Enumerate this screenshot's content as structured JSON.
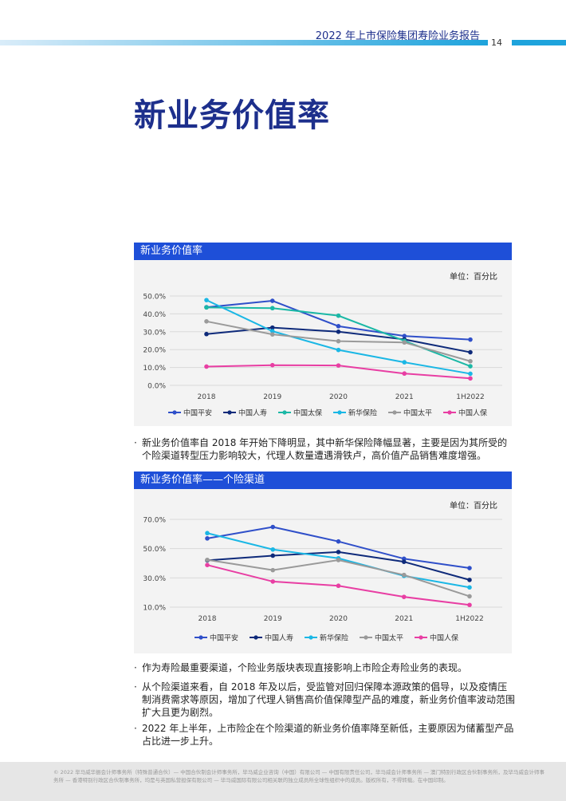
{
  "header": {
    "title": "2022 年上市保险集团寿险业务报告",
    "page": "14"
  },
  "page_title": "新业务价值率",
  "charts": [
    {
      "panel_title": "新业务价值率",
      "unit": "单位：百分比",
      "y_ticks": [
        "50.0%",
        "40.0%",
        "30.0%",
        "20.0%",
        "10.0%",
        "0.0%"
      ],
      "legend": [
        "中国平安",
        "中国人寿",
        "中国太保",
        "新华保险",
        "中国太平",
        "中国人保"
      ]
    },
    {
      "panel_title": "新业务价值率——个险渠道",
      "unit": "单位：百分比",
      "y_ticks": [
        "70.0%",
        "50.0%",
        "30.0%",
        "10.0%"
      ],
      "legend": [
        "中国平安",
        "中国人寿",
        "新华保险",
        "中国太平",
        "中国人保"
      ]
    }
  ],
  "chart_data": [
    {
      "type": "line",
      "title": "新业务价值率",
      "categories": [
        "2018",
        "2019",
        "2020",
        "2021",
        "1H2022"
      ],
      "ylim": [
        0,
        50
      ],
      "grid": true,
      "legend_position": "bottom",
      "series": [
        {
          "name": "中国平安",
          "color": "#2f4fc9",
          "values": [
            43.7,
            47.3,
            33.1,
            27.6,
            25.6
          ]
        },
        {
          "name": "中国人寿",
          "color": "#0e2a7a",
          "values": [
            28.7,
            32.3,
            30.0,
            25.7,
            18.5
          ]
        },
        {
          "name": "中国太保",
          "color": "#1bb8a6",
          "values": [
            43.6,
            43.2,
            39.0,
            24.9,
            10.7
          ]
        },
        {
          "name": "新华保险",
          "color": "#1ab7e5",
          "values": [
            47.7,
            30.3,
            19.8,
            12.9,
            6.5
          ]
        },
        {
          "name": "中国太平",
          "color": "#9a9a9a",
          "values": [
            35.8,
            28.5,
            24.7,
            24.0,
            13.5
          ]
        },
        {
          "name": "中国人保",
          "color": "#e83ea3",
          "values": [
            10.5,
            11.3,
            11.1,
            6.6,
            3.9
          ]
        }
      ]
    },
    {
      "type": "line",
      "title": "新业务价值率——个险渠道",
      "categories": [
        "2018",
        "2019",
        "2020",
        "2021",
        "1H2022"
      ],
      "ylim": [
        10,
        70
      ],
      "grid": true,
      "legend_position": "bottom",
      "series": [
        {
          "name": "中国平安",
          "color": "#2f4fc9",
          "values": [
            57.0,
            64.8,
            54.9,
            43.1,
            36.7
          ]
        },
        {
          "name": "中国人寿",
          "color": "#0e2a7a",
          "values": [
            42.0,
            45.2,
            47.7,
            41.0,
            28.6
          ]
        },
        {
          "name": "新华保险",
          "color": "#1ab7e5",
          "values": [
            60.6,
            49.4,
            43.4,
            31.4,
            23.5
          ]
        },
        {
          "name": "中国太平",
          "color": "#9a9a9a",
          "values": [
            42.3,
            35.3,
            42.2,
            32.0,
            17.4
          ]
        },
        {
          "name": "中国人保",
          "color": "#e83ea3",
          "values": [
            38.8,
            27.5,
            24.6,
            17.0,
            11.5
          ]
        }
      ]
    }
  ],
  "bullets": [
    "新业务价值率自 2018 年开始下降明显，其中新华保险降幅显著，主要是因为其所受的个险渠道转型压力影响较大，代理人数量遭遇滑铁卢，高价值产品销售难度增强。",
    "作为寿险最重要渠道，个险业务版块表现直接影响上市险企寿险业务的表现。",
    "从个险渠道来看，自 2018 年及以后，受监管对回归保障本源政策的倡导，以及疫情压制消费需求等原因，增加了代理人销售高价值保障型产品的难度，新业务价值率波动范围扩大且更为剧烈。",
    "2022 年上半年，上市险企在个险渠道的新业务价值率降至新低，主要原因为储蓄型产品占比进一步上升。"
  ],
  "footer": "© 2022 毕马威华振会计师事务所（特殊普通合伙）— 中国合伙制会计师事务所，毕马威企业咨询（中国）有限公司 — 中国有限责任公司，毕马威会计师事务所 — 澳门特别行政区合伙制事务所，及毕马威会计师事务所 — 香港特别行政区合伙制事务所，均是与英国私营担保有限公司 — 毕马威国际有限公司相关联的独立成员所全球性组织中的成员。版权所有，不得转载。在中国印制。"
}
